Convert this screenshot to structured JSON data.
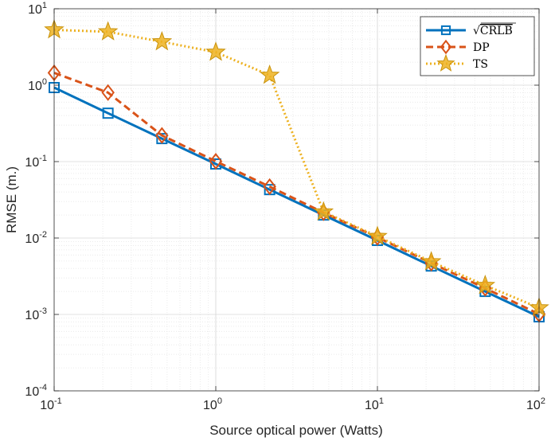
{
  "chart_data": {
    "type": "line",
    "title": "",
    "xlabel": "Source optical power (Watts)",
    "ylabel": "RMSE (m.)",
    "xscale": "log",
    "yscale": "log",
    "xlim": [
      0.1,
      100
    ],
    "ylim": [
      0.0001,
      10
    ],
    "grid": true,
    "minor_grid": true,
    "legend_position": "top-right",
    "x_ticks": [
      {
        "base": "10",
        "exp": "-1",
        "value": 0.1
      },
      {
        "base": "10",
        "exp": "0",
        "value": 1
      },
      {
        "base": "10",
        "exp": "1",
        "value": 10
      },
      {
        "base": "10",
        "exp": "2",
        "value": 100
      }
    ],
    "y_ticks": [
      {
        "base": "10",
        "exp": "-4",
        "value": 0.0001
      },
      {
        "base": "10",
        "exp": "-3",
        "value": 0.001
      },
      {
        "base": "10",
        "exp": "-2",
        "value": 0.01
      },
      {
        "base": "10",
        "exp": "-1",
        "value": 0.1
      },
      {
        "base": "10",
        "exp": "0",
        "value": 1
      },
      {
        "base": "10",
        "exp": "1",
        "value": 10
      }
    ],
    "x": [
      0.1,
      0.2154,
      0.4642,
      1.0,
      2.154,
      4.642,
      10.0,
      21.54,
      46.42,
      100.0
    ],
    "series": [
      {
        "name": "CRLB",
        "legend_prefix": "√",
        "color": "#0072BD",
        "line": "solid",
        "marker": "square",
        "values": [
          0.93,
          0.43,
          0.2,
          0.093,
          0.043,
          0.02,
          0.0093,
          0.0043,
          0.002,
          0.00093
        ]
      },
      {
        "name": "DP",
        "color": "#D95319",
        "line": "dashed",
        "marker": "diamond",
        "values": [
          1.45,
          0.8,
          0.22,
          0.101,
          0.047,
          0.0215,
          0.0102,
          0.0047,
          0.0022,
          0.00101
        ]
      },
      {
        "name": "TS",
        "color": "#EDB120",
        "line": "dotted",
        "marker": "star",
        "values": [
          5.3,
          5.0,
          3.7,
          2.7,
          1.35,
          0.022,
          0.0105,
          0.0049,
          0.0024,
          0.00122
        ]
      }
    ]
  }
}
